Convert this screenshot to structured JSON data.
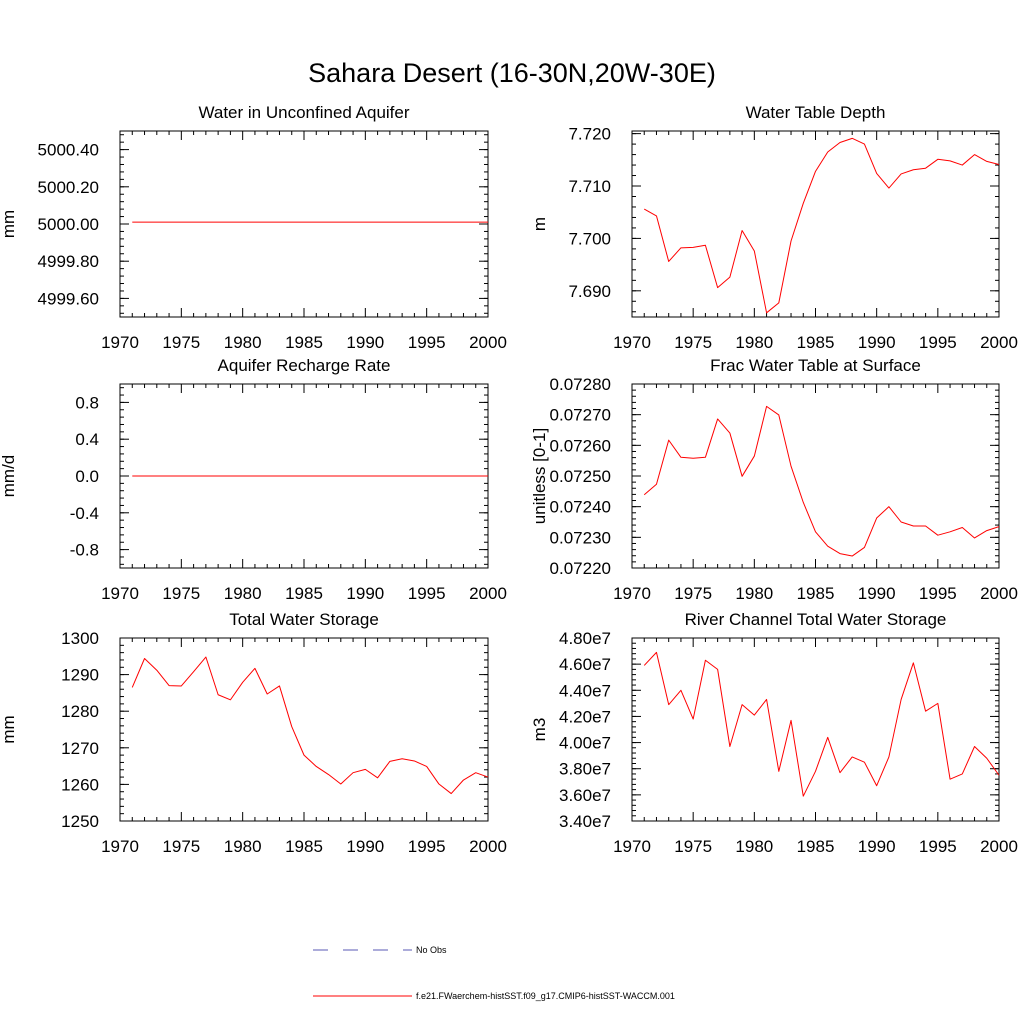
{
  "title": "Sahara Desert (16-30N,20W-30E)",
  "legend": {
    "obs_label": "No Obs",
    "model_label": "f.e21.FWaerchem-histSST.f09_g17.CMIP6-histSST-WACCM.001",
    "model_color": "#ff0000",
    "obs_color": "#5a5ab4"
  },
  "chart_data": [
    {
      "type": "line",
      "title": "Water in Unconfined Aquifer",
      "ylabel": "mm",
      "xlim": [
        1970,
        2000
      ],
      "ylim": [
        4999.5,
        5000.5
      ],
      "xticks": [
        1970,
        1975,
        1980,
        1985,
        1990,
        1995,
        2000
      ],
      "yticks": [
        4999.6,
        4999.8,
        5000.0,
        5000.2,
        5000.4
      ],
      "ytick_labels": [
        "4999.60",
        "4999.80",
        "5000.00",
        "5000.20",
        "5000.40"
      ],
      "x": [
        1971,
        1972,
        1973,
        1974,
        1975,
        1976,
        1977,
        1978,
        1979,
        1980,
        1981,
        1982,
        1983,
        1984,
        1985,
        1986,
        1987,
        1988,
        1989,
        1990,
        1991,
        1992,
        1993,
        1994,
        1995,
        1996,
        1997,
        1998,
        1999,
        2000
      ],
      "series": [
        {
          "values": [
            5000.01,
            5000.01,
            5000.01,
            5000.01,
            5000.01,
            5000.01,
            5000.01,
            5000.01,
            5000.01,
            5000.01,
            5000.01,
            5000.01,
            5000.01,
            5000.01,
            5000.01,
            5000.01,
            5000.01,
            5000.01,
            5000.01,
            5000.01,
            5000.01,
            5000.01,
            5000.01,
            5000.01,
            5000.01,
            5000.01,
            5000.01,
            5000.01,
            5000.01,
            5000.01
          ]
        }
      ]
    },
    {
      "type": "line",
      "title": "Water Table Depth",
      "ylabel": "m",
      "xlim": [
        1970,
        2000
      ],
      "ylim": [
        7.685,
        7.7205
      ],
      "xticks": [
        1970,
        1975,
        1980,
        1985,
        1990,
        1995,
        2000
      ],
      "yticks": [
        7.69,
        7.7,
        7.71,
        7.72
      ],
      "ytick_labels": [
        "7.690",
        "7.700",
        "7.710",
        "7.720"
      ],
      "x": [
        1971,
        1972,
        1973,
        1974,
        1975,
        1976,
        1977,
        1978,
        1979,
        1980,
        1981,
        1982,
        1983,
        1984,
        1985,
        1986,
        1987,
        1988,
        1989,
        1990,
        1991,
        1992,
        1993,
        1994,
        1995,
        1996,
        1997,
        1998,
        1999,
        2000
      ],
      "series": [
        {
          "values": [
            7.7056,
            7.7043,
            7.6956,
            7.6982,
            7.6983,
            7.6987,
            7.6906,
            7.6926,
            7.7015,
            7.6976,
            7.6858,
            7.6877,
            7.6995,
            7.7067,
            7.7128,
            7.7165,
            7.7183,
            7.7191,
            7.718,
            7.7124,
            7.7096,
            7.7123,
            7.7131,
            7.7134,
            7.7151,
            7.7148,
            7.714,
            7.716,
            7.7147,
            7.7141
          ]
        }
      ]
    },
    {
      "type": "line",
      "title": "Aquifer Recharge Rate",
      "ylabel": "mm/d",
      "xlim": [
        1970,
        2000
      ],
      "ylim": [
        -1.0,
        1.0
      ],
      "xticks": [
        1970,
        1975,
        1980,
        1985,
        1990,
        1995,
        2000
      ],
      "yticks": [
        -0.8,
        -0.4,
        0.0,
        0.4,
        0.8
      ],
      "ytick_labels": [
        "-0.8",
        "-0.4",
        "0.0",
        "0.4",
        "0.8"
      ],
      "x": [
        1971,
        1972,
        1973,
        1974,
        1975,
        1976,
        1977,
        1978,
        1979,
        1980,
        1981,
        1982,
        1983,
        1984,
        1985,
        1986,
        1987,
        1988,
        1989,
        1990,
        1991,
        1992,
        1993,
        1994,
        1995,
        1996,
        1997,
        1998,
        1999,
        2000
      ],
      "series": [
        {
          "values": [
            0,
            0,
            0,
            0,
            0,
            0,
            0,
            0,
            0,
            0,
            0,
            0,
            0,
            0,
            0,
            0,
            0,
            0,
            0,
            0,
            0,
            0,
            0,
            0,
            0,
            0,
            0,
            0,
            0,
            0
          ]
        }
      ]
    },
    {
      "type": "line",
      "title": "Frac Water Table at Surface",
      "ylabel": "unitless [0-1]",
      "xlim": [
        1970,
        2000
      ],
      "ylim": [
        0.0722,
        0.0728
      ],
      "xticks": [
        1970,
        1975,
        1980,
        1985,
        1990,
        1995,
        2000
      ],
      "yticks": [
        0.0722,
        0.0723,
        0.0724,
        0.0725,
        0.0726,
        0.0727,
        0.0728
      ],
      "ytick_labels": [
        "0.07220",
        "0.07230",
        "0.07240",
        "0.07250",
        "0.07260",
        "0.07270",
        "0.07280"
      ],
      "x": [
        1971,
        1972,
        1973,
        1974,
        1975,
        1976,
        1977,
        1978,
        1979,
        1980,
        1981,
        1982,
        1983,
        1984,
        1985,
        1986,
        1987,
        1988,
        1989,
        1990,
        1991,
        1992,
        1993,
        1994,
        1995,
        1996,
        1997,
        1998,
        1999,
        2000
      ],
      "series": [
        {
          "values": [
            0.072439,
            0.072473,
            0.072617,
            0.072561,
            0.072558,
            0.072561,
            0.072686,
            0.07264,
            0.072499,
            0.072565,
            0.072727,
            0.072699,
            0.072532,
            0.072414,
            0.072318,
            0.072271,
            0.072247,
            0.072239,
            0.072267,
            0.072363,
            0.0724,
            0.07235,
            0.072337,
            0.072337,
            0.072307,
            0.072318,
            0.072332,
            0.072298,
            0.072322,
            0.072335
          ]
        }
      ]
    },
    {
      "type": "line",
      "title": "Total Water Storage",
      "ylabel": "mm",
      "xlim": [
        1970,
        2000
      ],
      "ylim": [
        1250,
        1300
      ],
      "xticks": [
        1970,
        1975,
        1980,
        1985,
        1990,
        1995,
        2000
      ],
      "yticks": [
        1250,
        1260,
        1270,
        1280,
        1290,
        1300
      ],
      "ytick_labels": [
        "1250",
        "1260",
        "1270",
        "1280",
        "1290",
        "1300"
      ],
      "x": [
        1971,
        1972,
        1973,
        1974,
        1975,
        1976,
        1977,
        1978,
        1979,
        1980,
        1981,
        1982,
        1983,
        1984,
        1985,
        1986,
        1987,
        1988,
        1989,
        1990,
        1991,
        1992,
        1993,
        1994,
        1995,
        1996,
        1997,
        1998,
        1999,
        2000
      ],
      "series": [
        {
          "values": [
            1286.5,
            1294.4,
            1291.2,
            1287.0,
            1286.9,
            1290.8,
            1294.8,
            1284.5,
            1283.1,
            1287.9,
            1291.7,
            1284.7,
            1286.9,
            1275.8,
            1268.0,
            1264.9,
            1262.7,
            1260.1,
            1263.2,
            1264.1,
            1261.8,
            1266.3,
            1267.0,
            1266.4,
            1264.9,
            1260.1,
            1257.5,
            1261.2,
            1263.2,
            1262.0
          ]
        }
      ]
    },
    {
      "type": "line",
      "title": "River Channel Total Water Storage",
      "ylabel": "m3",
      "xlim": [
        1970,
        2000
      ],
      "ylim": [
        34000000,
        48000000
      ],
      "xticks": [
        1970,
        1975,
        1980,
        1985,
        1990,
        1995,
        2000
      ],
      "yticks": [
        34000000,
        36000000,
        38000000,
        40000000,
        42000000,
        44000000,
        46000000,
        48000000
      ],
      "ytick_labels": [
        "3.40e7",
        "3.60e7",
        "3.80e7",
        "4.00e7",
        "4.20e7",
        "4.40e7",
        "4.60e7",
        "4.80e7"
      ],
      "x": [
        1971,
        1972,
        1973,
        1974,
        1975,
        1976,
        1977,
        1978,
        1979,
        1980,
        1981,
        1982,
        1983,
        1984,
        1985,
        1986,
        1987,
        1988,
        1989,
        1990,
        1991,
        1992,
        1993,
        1994,
        1995,
        1996,
        1997,
        1998,
        1999,
        2000
      ],
      "series": [
        {
          "values": [
            45900000,
            46900000,
            42900000,
            44000000,
            41800000,
            46300000,
            45600000,
            39700000,
            42900000,
            42100000,
            43300000,
            37800000,
            41700000,
            35900000,
            37800000,
            40400000,
            37700000,
            38900000,
            38500000,
            36700000,
            38900000,
            43300000,
            46100000,
            42400000,
            43000000,
            37200000,
            37600000,
            39700000,
            38800000,
            37500000
          ]
        }
      ]
    }
  ]
}
